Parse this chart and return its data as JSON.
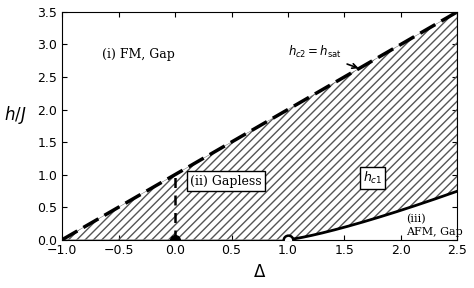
{
  "xlim": [
    -1,
    2.5
  ],
  "ylim": [
    0,
    3.5
  ],
  "xlabel": "$\\Delta$",
  "ylabel": "$h/J$",
  "xlabel_fontsize": 12,
  "ylabel_fontsize": 12,
  "tick_fontsize": 9,
  "label_FM": "(i) FM, Gap",
  "label_gapless": "(ii) Gapless",
  "label_AFM": "(iii)\nAFM, Gap",
  "label_hc2": "$h_{c2} = h_{\\mathrm{sat}}$",
  "label_hc1": "$h_{c1}$",
  "filled_dot_x": 0.0,
  "filled_dot_y": 0.0,
  "open_dot_x": 1.0,
  "open_dot_y": 0.0,
  "xticks": [
    -1,
    -0.5,
    0,
    0.5,
    1,
    1.5,
    2,
    2.5
  ],
  "yticks": [
    0,
    0.5,
    1,
    1.5,
    2,
    2.5,
    3,
    3.5
  ]
}
